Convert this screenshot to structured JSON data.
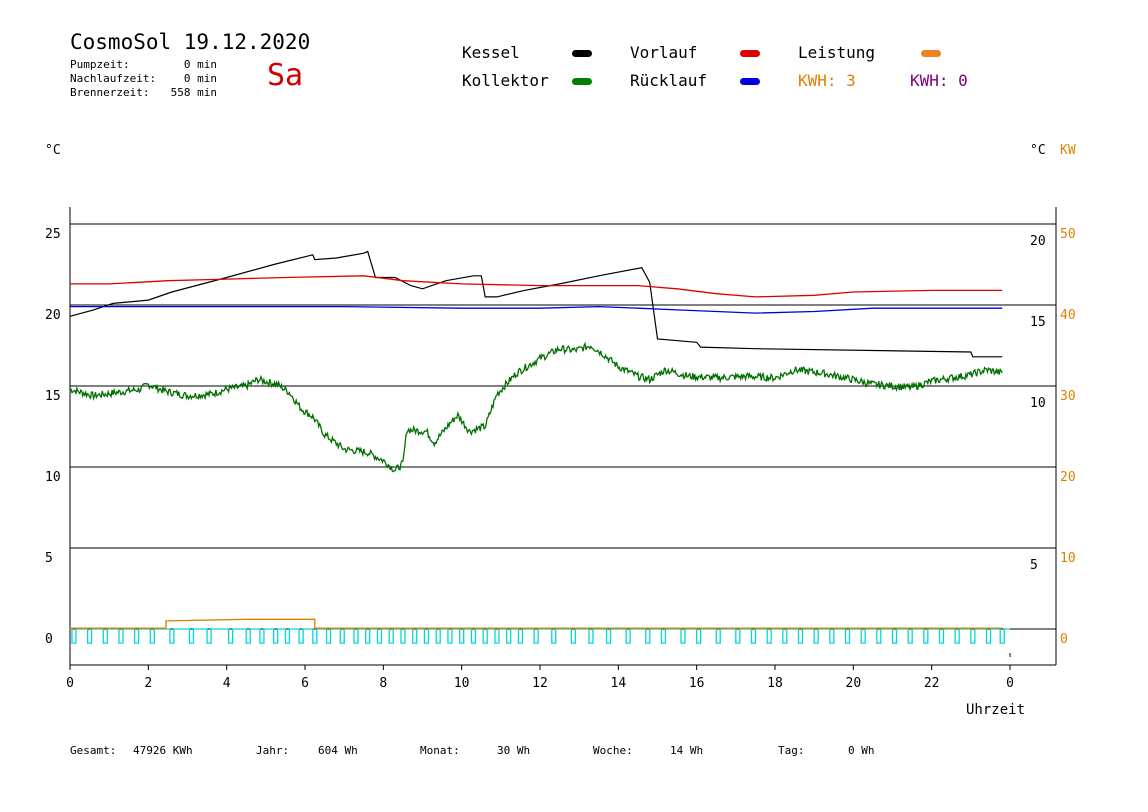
{
  "header": {
    "title": "CosmoSol 19.12.2020",
    "day": "Sa",
    "stats": [
      {
        "label": "Pumpzeit:",
        "value": "0 min"
      },
      {
        "label": "Nachlaufzeit:",
        "value": "0 min"
      },
      {
        "label": "Brennerzeit:",
        "value": "558 min"
      }
    ]
  },
  "legend": {
    "items": [
      {
        "label": "Kessel",
        "color": "#000000"
      },
      {
        "label": "Vorlauf",
        "color": "#e00000"
      },
      {
        "label": "Leistung",
        "color": "#f08020"
      },
      {
        "label": "Kollektor",
        "color": "#008000"
      },
      {
        "label": "Rücklauf",
        "color": "#0000e0"
      }
    ],
    "kwh_orange": "KWH: 3",
    "kwh_purple": "KWH: 0",
    "kwh_orange_color": "#e08000",
    "kwh_purple_color": "#800080"
  },
  "axes": {
    "left_unit": "°C",
    "right_unit_c": "°C",
    "right_unit_kw": "KW",
    "xlabel": "Uhrzeit"
  },
  "chart_data": {
    "type": "line",
    "x_ticks": [
      "0",
      "2",
      "4",
      "6",
      "8",
      "10",
      "12",
      "14",
      "16",
      "18",
      "20",
      "22",
      "0"
    ],
    "xlim": [
      0,
      24
    ],
    "ylim": [
      -1.5,
      26
    ],
    "left_ticks": [
      "25",
      "20",
      "15",
      "10",
      "5",
      "0"
    ],
    "right_c_ticks": [
      "20",
      "15",
      "10",
      "5"
    ],
    "right_kw_ticks": [
      "50",
      "40",
      "30",
      "20",
      "10",
      "0"
    ],
    "grid": true,
    "series": [
      {
        "name": "Kessel",
        "color": "#000000",
        "points": [
          [
            0,
            19.3
          ],
          [
            0.6,
            19.7
          ],
          [
            1.1,
            20.1
          ],
          [
            2.0,
            20.3
          ],
          [
            2.6,
            20.8
          ],
          [
            4.0,
            21.7
          ],
          [
            5.2,
            22.5
          ],
          [
            6.2,
            23.1
          ],
          [
            6.25,
            22.8
          ],
          [
            6.8,
            22.9
          ],
          [
            7.5,
            23.2
          ],
          [
            7.6,
            23.3
          ],
          [
            7.8,
            21.7
          ],
          [
            8.3,
            21.7
          ],
          [
            8.7,
            21.2
          ],
          [
            9.0,
            21.0
          ],
          [
            9.6,
            21.5
          ],
          [
            10.3,
            21.8
          ],
          [
            10.5,
            21.8
          ],
          [
            10.6,
            20.5
          ],
          [
            10.9,
            20.5
          ],
          [
            11.6,
            20.9
          ],
          [
            12.5,
            21.3
          ],
          [
            13.5,
            21.8
          ],
          [
            14.6,
            22.3
          ],
          [
            14.8,
            21.4
          ],
          [
            15.0,
            17.9
          ],
          [
            16.0,
            17.7
          ],
          [
            16.1,
            17.4
          ],
          [
            17.5,
            17.3
          ],
          [
            23.0,
            17.1
          ],
          [
            23.05,
            16.8
          ],
          [
            23.8,
            16.8
          ]
        ]
      },
      {
        "name": "Vorlauf",
        "color": "#e00000",
        "points": [
          [
            0,
            21.3
          ],
          [
            1.0,
            21.3
          ],
          [
            2.5,
            21.5
          ],
          [
            4.0,
            21.6
          ],
          [
            5.5,
            21.7
          ],
          [
            7.5,
            21.8
          ],
          [
            8.5,
            21.5
          ],
          [
            10.0,
            21.3
          ],
          [
            12.0,
            21.2
          ],
          [
            14.5,
            21.2
          ],
          [
            15.5,
            21.0
          ],
          [
            16.5,
            20.7
          ],
          [
            17.5,
            20.5
          ],
          [
            19.0,
            20.6
          ],
          [
            20.0,
            20.8
          ],
          [
            22.0,
            20.9
          ],
          [
            23.8,
            20.9
          ]
        ]
      },
      {
        "name": "Rücklauf",
        "color": "#0000e0",
        "points": [
          [
            0,
            19.9
          ],
          [
            2.0,
            19.9
          ],
          [
            7.0,
            19.9
          ],
          [
            10.0,
            19.8
          ],
          [
            12.0,
            19.8
          ],
          [
            13.5,
            19.9
          ],
          [
            14.5,
            19.8
          ],
          [
            15.5,
            19.7
          ],
          [
            16.5,
            19.6
          ],
          [
            17.5,
            19.5
          ],
          [
            19.0,
            19.6
          ],
          [
            20.5,
            19.8
          ],
          [
            22.0,
            19.8
          ],
          [
            23.8,
            19.8
          ]
        ]
      },
      {
        "name": "Kollektor",
        "color": "#007000",
        "noisy": true,
        "points": [
          [
            0,
            14.8
          ],
          [
            0.6,
            14.4
          ],
          [
            1.2,
            14.6
          ],
          [
            1.8,
            14.8
          ],
          [
            2.0,
            15.1
          ],
          [
            2.4,
            14.7
          ],
          [
            3.0,
            14.4
          ],
          [
            3.6,
            14.5
          ],
          [
            4.0,
            14.8
          ],
          [
            4.5,
            15.0
          ],
          [
            4.8,
            15.4
          ],
          [
            5.3,
            15.1
          ],
          [
            5.6,
            14.6
          ],
          [
            5.9,
            13.6
          ],
          [
            6.2,
            13.1
          ],
          [
            6.5,
            12.0
          ],
          [
            7.0,
            11.1
          ],
          [
            7.6,
            10.9
          ],
          [
            8.0,
            10.4
          ],
          [
            8.3,
            9.8
          ],
          [
            8.5,
            10.2
          ],
          [
            8.6,
            12.3
          ],
          [
            9.1,
            12.2
          ],
          [
            9.3,
            11.5
          ],
          [
            9.7,
            12.7
          ],
          [
            9.9,
            13.2
          ],
          [
            10.2,
            12.2
          ],
          [
            10.6,
            12.5
          ],
          [
            10.9,
            14.5
          ],
          [
            11.4,
            15.8
          ],
          [
            12.0,
            16.7
          ],
          [
            12.5,
            17.3
          ],
          [
            12.9,
            17.2
          ],
          [
            13.3,
            17.5
          ],
          [
            13.6,
            17.0
          ],
          [
            14.0,
            16.2
          ],
          [
            14.5,
            15.6
          ],
          [
            14.8,
            15.4
          ],
          [
            15.2,
            16.0
          ],
          [
            15.8,
            15.6
          ],
          [
            16.5,
            15.5
          ],
          [
            17.3,
            15.6
          ],
          [
            18.0,
            15.5
          ],
          [
            18.5,
            16.0
          ],
          [
            19.2,
            15.8
          ],
          [
            19.8,
            15.5
          ],
          [
            20.5,
            15.1
          ],
          [
            21.0,
            15.0
          ],
          [
            21.5,
            14.9
          ],
          [
            22.0,
            15.3
          ],
          [
            22.5,
            15.5
          ],
          [
            23.0,
            15.7
          ],
          [
            23.4,
            16.0
          ],
          [
            23.8,
            15.8
          ]
        ]
      },
      {
        "name": "Leistung",
        "color": "#e08000",
        "points": [
          [
            0,
            0.05
          ],
          [
            2.45,
            0.05
          ],
          [
            2.45,
            0.5
          ],
          [
            4.5,
            0.6
          ],
          [
            6.25,
            0.6
          ],
          [
            6.25,
            0.05
          ],
          [
            23.8,
            0.05
          ]
        ]
      }
    ],
    "pump_state": {
      "name": "Pumpe",
      "color": "#00d8d8",
      "baseline": -0.5,
      "high": 0.0,
      "pulses_x": [
        0.05,
        0.45,
        0.85,
        1.25,
        1.65,
        2.05,
        2.55,
        3.05,
        3.5,
        4.05,
        4.5,
        4.85,
        5.2,
        5.5,
        5.85,
        6.2,
        6.55,
        6.9,
        7.25,
        7.55,
        7.85,
        8.15,
        8.45,
        8.75,
        9.05,
        9.35,
        9.65,
        9.95,
        10.25,
        10.55,
        10.85,
        11.15,
        11.45,
        11.85,
        12.3,
        12.8,
        13.25,
        13.7,
        14.2,
        14.7,
        15.1,
        15.6,
        16.0,
        16.5,
        17.0,
        17.4,
        17.8,
        18.2,
        18.6,
        19.0,
        19.4,
        19.8,
        20.2,
        20.6,
        21.0,
        21.4,
        21.8,
        22.2,
        22.6,
        23.0,
        23.4,
        23.75
      ]
    }
  },
  "footer": {
    "items": [
      {
        "label": "Gesamt:",
        "value": "47926 KWh"
      },
      {
        "label": "Jahr:",
        "value": "604 Wh"
      },
      {
        "label": "Monat:",
        "value": "30 Wh"
      },
      {
        "label": "Woche:",
        "value": "14 Wh"
      },
      {
        "label": "Tag:",
        "value": "0 Wh"
      }
    ]
  }
}
